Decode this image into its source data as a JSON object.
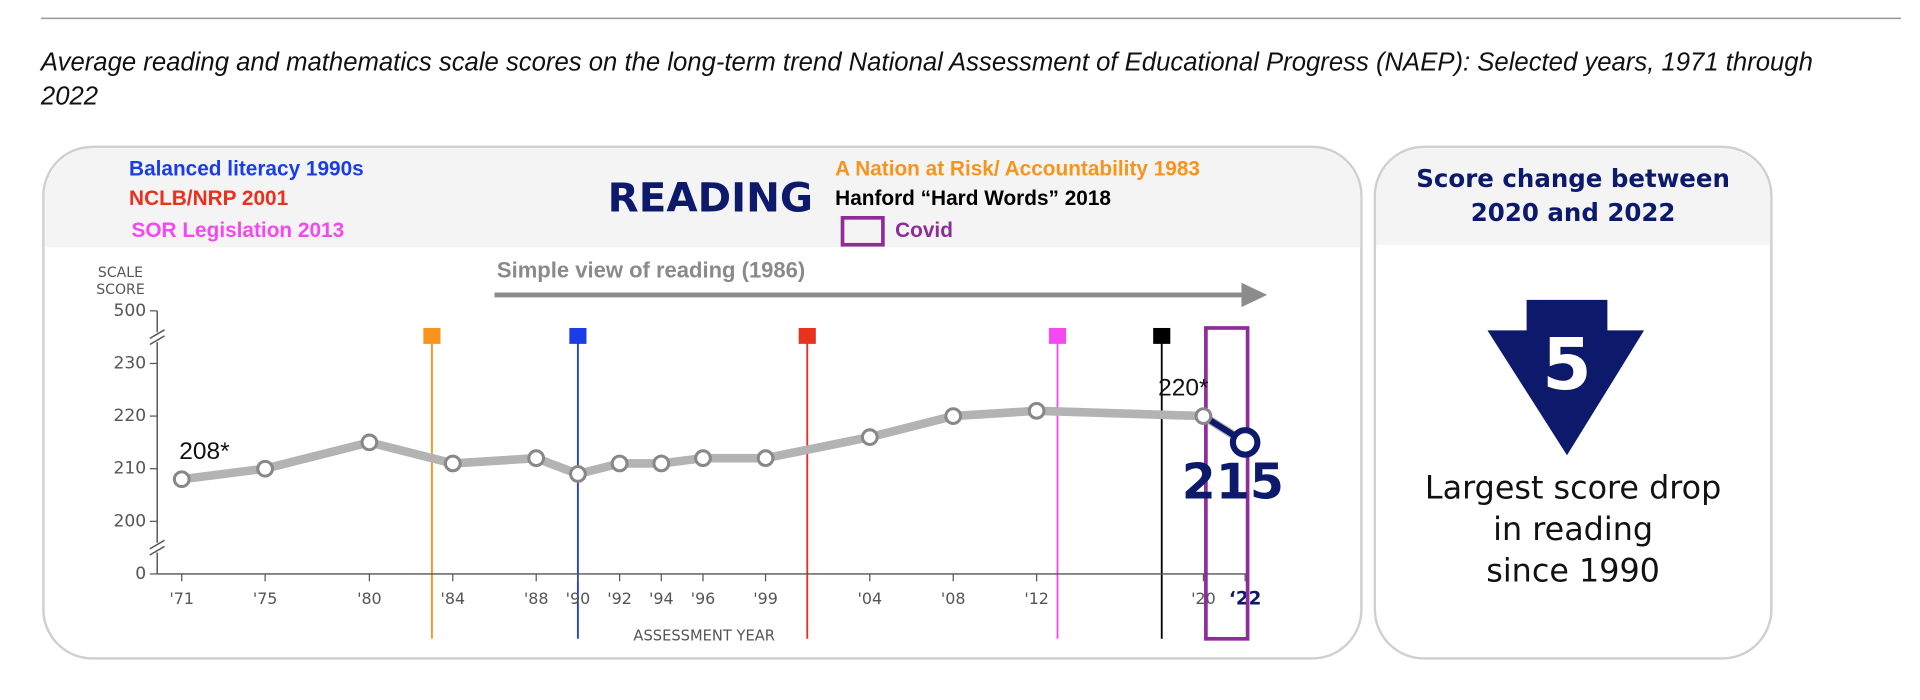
{
  "title_lines": [
    "Average reading and mathematics scale scores on the long-term trend National Assessment of Educational Progress (NAEP): Selected years, 1971 through",
    "2022"
  ],
  "chart_data": {
    "type": "line",
    "heading": "READING",
    "x": [
      1971,
      1975,
      1980,
      1984,
      1988,
      1990,
      1992,
      1994,
      1996,
      1999,
      2004,
      2008,
      2012,
      2020,
      2022
    ],
    "values": [
      208,
      210,
      215,
      211,
      212,
      209,
      211,
      211,
      212,
      212,
      216,
      220,
      221,
      220,
      215
    ],
    "value_labels": [
      "208*",
      null,
      null,
      null,
      null,
      null,
      null,
      null,
      null,
      null,
      null,
      null,
      null,
      "220*",
      "215"
    ],
    "color": "#b3b3b3",
    "highlight_color": "#0d1a6b",
    "xlim": [
      1970,
      2022
    ],
    "xticks": [
      {
        "value": 1971,
        "label": "'71"
      },
      {
        "value": 1975,
        "label": "'75"
      },
      {
        "value": 1980,
        "label": "'80"
      },
      {
        "value": 1984,
        "label": "'84"
      },
      {
        "value": 1988,
        "label": "'88"
      },
      {
        "value": 1990,
        "label": "'90"
      },
      {
        "value": 1992,
        "label": "'92"
      },
      {
        "value": 1994,
        "label": "'94"
      },
      {
        "value": 1996,
        "label": "'96"
      },
      {
        "value": 1999,
        "label": "'99"
      },
      {
        "value": 2004,
        "label": "'04"
      },
      {
        "value": 2008,
        "label": "'08"
      },
      {
        "value": 2012,
        "label": "'12"
      },
      {
        "value": 2020,
        "label": "'20"
      },
      {
        "value": 2022,
        "label": "‘22"
      }
    ],
    "ylim": [
      0,
      500
    ],
    "yticks": [
      0,
      200,
      210,
      220,
      230,
      500
    ],
    "axis_break": true,
    "y_label_lines": [
      "SCALE",
      "SCORE"
    ],
    "x_label": "ASSESSMENT YEAR",
    "annotation": {
      "text": "Simple view of reading (1986)",
      "x": 1986
    },
    "events": [
      {
        "name": "A Nation at Risk/ Accountability 1983",
        "year": 1983,
        "color": "#f7941d"
      },
      {
        "name": "Balanced literacy 1990s",
        "year": 1990,
        "color": "#1b3de8"
      },
      {
        "name": "NCLB/NRP 2001",
        "year": 2001,
        "color": "#e8321e"
      },
      {
        "name": "SOR Legislation 2013",
        "year": 2013,
        "color": "#f548f0"
      },
      {
        "name": "Hanford “Hard Words” 2018",
        "year": 2018,
        "color": "#000000"
      }
    ],
    "covid": {
      "name": "Covid",
      "span": [
        2020,
        2022
      ],
      "color": "#8e2c9a"
    }
  },
  "score_change": {
    "title_lines": [
      "Score change between",
      "2020 and 2022"
    ],
    "value": 5,
    "note_lines": [
      "Largest score drop",
      "in reading",
      "since 1990"
    ]
  }
}
